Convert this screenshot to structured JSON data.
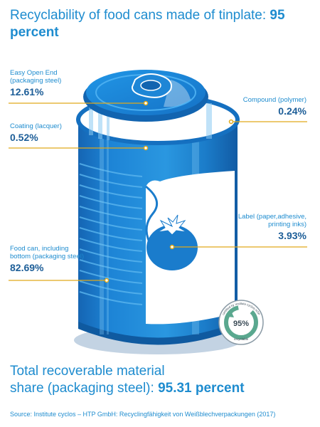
{
  "title": {
    "text": "Recyclability of food cans made of tinplate:",
    "value": "95 percent"
  },
  "labels": {
    "easy_open_end": {
      "name_line1": "Easy Open End",
      "name_line2": "(packaging steel)",
      "value": "12.61%"
    },
    "coating": {
      "name": "Coating (lacquer)",
      "value": "0.52%"
    },
    "compound": {
      "name": "Compound (polymer)",
      "value": "0.24%"
    },
    "label": {
      "name_line1": "Label (paper,adhesive,",
      "name_line2": "printing inks)",
      "value": "3.93%"
    },
    "food_can": {
      "name_line1": "Food can, including",
      "name_line2": "bottom (packaging steel)",
      "value": "82.69%"
    }
  },
  "badge": {
    "percent": "95%",
    "ring_text": "certified by institute cyclos-HTP",
    "bottom_text": "recyclable"
  },
  "footer": {
    "line1": "Total recoverable material",
    "line2": "share (packaging steel):",
    "value": "95.31 percent"
  },
  "source": "Source: Institute cyclos – HTP GmbH: Recyclingfähigkeit von Weißblechverpackungen (2017)",
  "colors": {
    "accent": "#1e8ccf",
    "dark_blue": "#1d5e98",
    "can_blue": "#1a7ccc",
    "leader_line": "#e0a91a"
  }
}
